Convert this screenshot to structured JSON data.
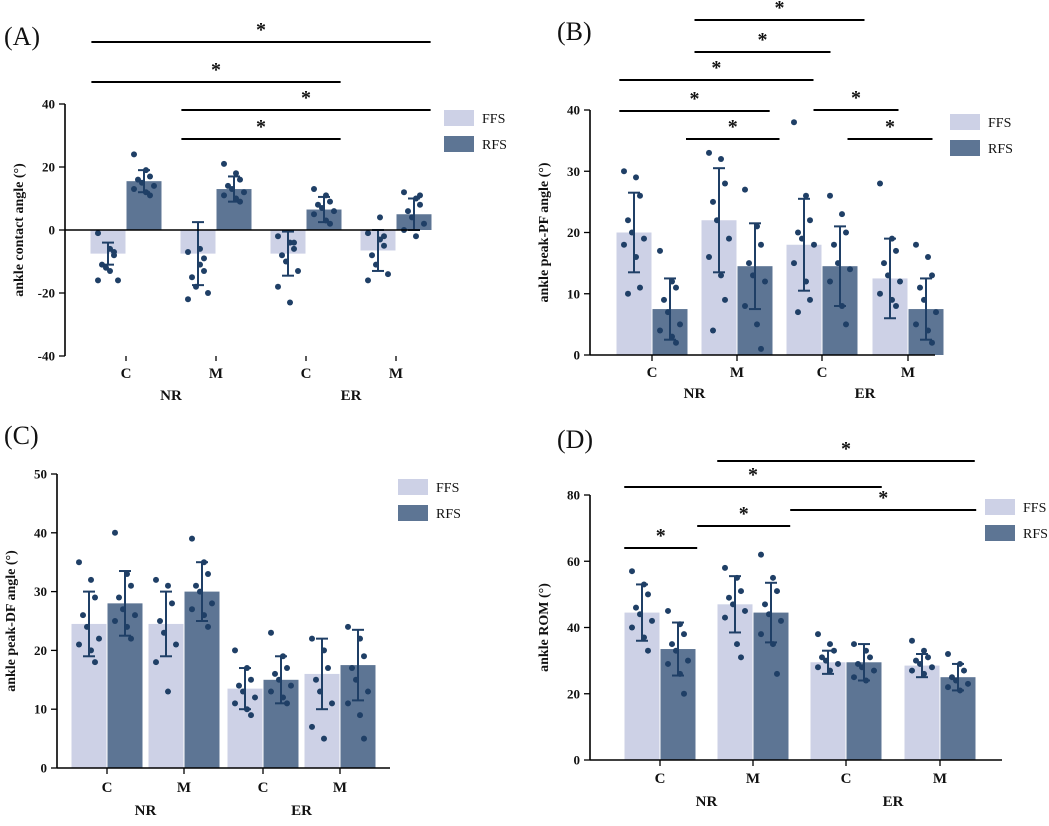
{
  "colors": {
    "ffs": "#cdd1e6",
    "rfs": "#5d7594",
    "dot": "#1f3f66",
    "axis": "#000000"
  },
  "chart_data": [
    {
      "type": "bar",
      "panel_label": "(A)",
      "ylabel": "ankle contact angle (°)",
      "ylim": [
        -40,
        40
      ],
      "yticks": [
        "-40",
        "-20",
        "0",
        "20",
        "40"
      ],
      "categories": [
        "C",
        "M",
        "C",
        "M"
      ],
      "groups": [
        "NR",
        "ER"
      ],
      "legend": [
        "FFS",
        "RFS"
      ],
      "series": [
        {
          "name": "FFS",
          "values": [
            -7.5,
            -7.5,
            -7.5,
            -6.5
          ],
          "sd": [
            3.5,
            10,
            7,
            6.5
          ],
          "points": [
            [
              -1,
              -6,
              -8,
              -11,
              -12,
              -16,
              -16,
              -13,
              -7
            ],
            [
              -7,
              -11,
              -13,
              -15,
              -18,
              -20,
              -22,
              -6,
              -9
            ],
            [
              -2,
              -4,
              -6,
              -8,
              -10,
              -13,
              -18,
              -23,
              -4
            ],
            [
              -1,
              -3,
              -5,
              -8,
              -11,
              -14,
              -16,
              4,
              -2
            ]
          ]
        },
        {
          "name": "RFS",
          "values": [
            15.5,
            13,
            6.5,
            5
          ],
          "sd": [
            3.5,
            4,
            4,
            5
          ],
          "points": [
            [
              24,
              19,
              17,
              16,
              15,
              14,
              13,
              12,
              11
            ],
            [
              21,
              18,
              16,
              14,
              13,
              12,
              11,
              10,
              9
            ],
            [
              13,
              11,
              9,
              8,
              7,
              6,
              5,
              3,
              2
            ],
            [
              12,
              10,
              8,
              6,
              4,
              2,
              0,
              -2,
              11
            ]
          ]
        }
      ],
      "significance": [
        {
          "from": 0,
          "to": 3,
          "label": "*"
        },
        {
          "from": 0,
          "to": 2,
          "label": "*"
        },
        {
          "from": 1,
          "to": 3,
          "label": "*"
        },
        {
          "from": 1,
          "to": 2,
          "label": "*"
        }
      ]
    },
    {
      "type": "bar",
      "panel_label": "(B)",
      "ylabel": "ankle peak-PF angle (°)",
      "ylim": [
        0,
        40
      ],
      "yticks": [
        "0",
        "10",
        "20",
        "30",
        "40"
      ],
      "categories": [
        "C",
        "M",
        "C",
        "M"
      ],
      "groups": [
        "NR",
        "ER"
      ],
      "legend": [
        "FFS",
        "RFS"
      ],
      "series": [
        {
          "name": "FFS",
          "values": [
            20,
            22,
            18,
            12.5
          ],
          "sd": [
            6.5,
            8.5,
            7.5,
            6.5
          ],
          "points": [
            [
              30,
              29,
              26,
              22,
              20,
              19,
              18,
              16,
              11,
              10
            ],
            [
              33,
              32,
              28,
              25,
              22,
              19,
              16,
              13,
              9,
              4
            ],
            [
              38,
              26,
              22,
              20,
              19,
              18,
              15,
              12,
              9,
              7
            ],
            [
              28,
              19,
              17,
              15,
              13,
              12,
              10,
              9,
              8
            ]
          ]
        },
        {
          "name": "RFS",
          "values": [
            7.5,
            14.5,
            14.5,
            7.5
          ],
          "sd": [
            5,
            7,
            6.5,
            5
          ],
          "points": [
            [
              17,
              12,
              11,
              9,
              7,
              5,
              4,
              3,
              2
            ],
            [
              27,
              21,
              18,
              15,
              13,
              12,
              8,
              5,
              1
            ],
            [
              26,
              23,
              20,
              18,
              15,
              14,
              12,
              8,
              5
            ],
            [
              18,
              16,
              13,
              11,
              9,
              7,
              5,
              4,
              2
            ]
          ]
        }
      ],
      "significance": [
        {
          "from": 0.5,
          "to": 2.5,
          "label": "*"
        },
        {
          "from": 0.5,
          "to": 2.1,
          "label": "*"
        },
        {
          "from": 0,
          "to": 1.9,
          "label": "*"
        },
        {
          "from": 0,
          "to": 1,
          "label": "*"
        },
        {
          "from": 1.9,
          "to": 2.9,
          "label": "*"
        },
        {
          "from": 0.4,
          "to": 1.5,
          "label": "*"
        },
        {
          "from": 2.3,
          "to": 3.3,
          "label": "*"
        }
      ]
    },
    {
      "type": "bar",
      "panel_label": "(C)",
      "ylabel": "ankle peak-DF angle (°)",
      "ylim": [
        0,
        50
      ],
      "yticks": [
        "0",
        "10",
        "20",
        "30",
        "40",
        "50"
      ],
      "categories": [
        "C",
        "M",
        "C",
        "M"
      ],
      "groups": [
        "NR",
        "ER"
      ],
      "legend": [
        "FFS",
        "RFS"
      ],
      "series": [
        {
          "name": "FFS",
          "values": [
            24.5,
            24.5,
            13.5,
            16
          ],
          "sd": [
            5.5,
            5.5,
            3.5,
            6
          ],
          "points": [
            [
              35,
              32,
              29,
              26,
              24,
              22,
              21,
              20,
              18
            ],
            [
              32,
              31,
              28,
              25,
              23,
              21,
              18,
              13
            ],
            [
              20,
              17,
              15,
              14,
              13,
              12,
              11,
              10,
              9
            ],
            [
              22,
              20,
              17,
              15,
              13,
              11,
              7,
              5
            ]
          ]
        },
        {
          "name": "RFS",
          "values": [
            28,
            30,
            15,
            17.5
          ],
          "sd": [
            5.5,
            5,
            4,
            6
          ],
          "points": [
            [
              40,
              33,
              31,
              29,
              27,
              26,
              25,
              24,
              22
            ],
            [
              39,
              35,
              33,
              31,
              30,
              28,
              27,
              26,
              24
            ],
            [
              23,
              19,
              17,
              16,
              15,
              14,
              13,
              12,
              11
            ],
            [
              24,
              22,
              19,
              17,
              15,
              13,
              11,
              9,
              5
            ]
          ]
        }
      ],
      "significance": []
    },
    {
      "type": "bar",
      "panel_label": "(D)",
      "ylabel": "ankle ROM (°)",
      "ylim": [
        0,
        80
      ],
      "yticks": [
        "0",
        "20",
        "40",
        "60",
        "80"
      ],
      "categories": [
        "C",
        "M",
        "C",
        "M"
      ],
      "groups": [
        "NR",
        "ER"
      ],
      "legend": [
        "FFS",
        "RFS"
      ],
      "series": [
        {
          "name": "FFS",
          "values": [
            44.5,
            47,
            29.5,
            28.5
          ],
          "sd": [
            8.5,
            8.5,
            3.5,
            3.5
          ],
          "points": [
            [
              57,
              53,
              50,
              46,
              44,
              42,
              40,
              37,
              33
            ],
            [
              58,
              55,
              51,
              49,
              47,
              45,
              43,
              35,
              31
            ],
            [
              38,
              35,
              33,
              31,
              30,
              29,
              28,
              27
            ],
            [
              36,
              33,
              31,
              30,
              29,
              28,
              27,
              26
            ]
          ]
        },
        {
          "name": "RFS",
          "values": [
            33.5,
            44.5,
            29.5,
            25
          ],
          "sd": [
            8,
            9,
            5.5,
            4
          ],
          "points": [
            [
              45,
              41,
              38,
              35,
              33,
              30,
              29,
              26,
              20
            ],
            [
              62,
              55,
              51,
              47,
              44,
              42,
              38,
              35,
              26
            ],
            [
              35,
              33,
              31,
              29,
              28,
              27,
              25,
              24
            ],
            [
              32,
              29,
              27,
              25,
              24,
              23,
              22,
              21
            ]
          ]
        }
      ],
      "significance": [
        {
          "from": 1,
          "to": 3,
          "label": "*"
        },
        {
          "from": 0,
          "to": 2,
          "label": "*"
        },
        {
          "from": 0.4,
          "to": 1.4,
          "label": "*"
        },
        {
          "from": 1.4,
          "to": 3.4,
          "label": "*"
        },
        {
          "from": 0,
          "to": 0.4,
          "label": "*"
        }
      ]
    }
  ]
}
